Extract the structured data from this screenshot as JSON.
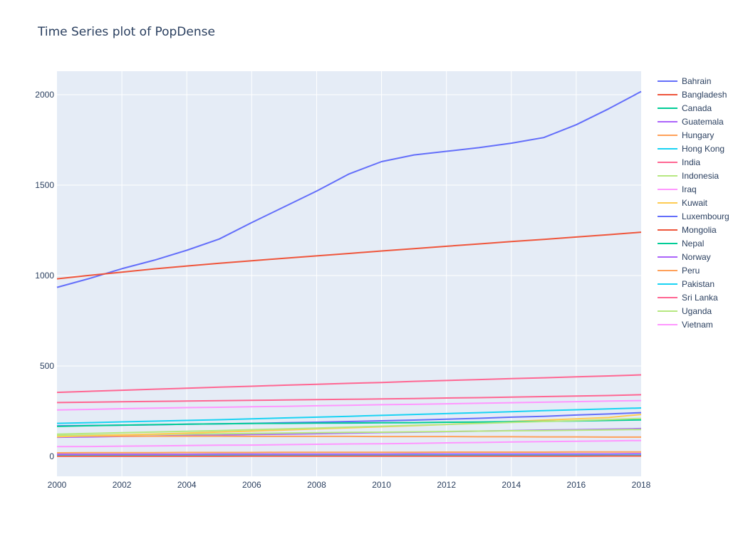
{
  "chart_data": {
    "type": "line",
    "title": "Time Series plot of PopDense",
    "xlabel": "",
    "ylabel": "",
    "xlim": [
      2000,
      2018
    ],
    "ylim": [
      -110,
      2130
    ],
    "x_ticks": [
      2000,
      2002,
      2004,
      2006,
      2008,
      2010,
      2012,
      2014,
      2016,
      2018
    ],
    "y_ticks": [
      0,
      500,
      1000,
      1500,
      2000
    ],
    "grid": true,
    "legend_position": "right",
    "plot_background": "#e5ecf6",
    "x": [
      2000,
      2001,
      2002,
      2003,
      2004,
      2005,
      2006,
      2007,
      2008,
      2009,
      2010,
      2011,
      2012,
      2013,
      2014,
      2015,
      2016,
      2017,
      2018
    ],
    "series": [
      {
        "name": "Bahrain",
        "color": "#636efa",
        "values": [
          935,
          984,
          1038,
          1085,
          1140,
          1202,
          1293,
          1380,
          1467,
          1562,
          1630,
          1667,
          1687,
          1707,
          1732,
          1763,
          1834,
          1922,
          2018
        ]
      },
      {
        "name": "Bangladesh",
        "color": "#EF553B",
        "values": [
          982,
          1001,
          1019,
          1037,
          1053,
          1068,
          1082,
          1096,
          1109,
          1122,
          1136,
          1149,
          1162,
          1175,
          1188,
          1200,
          1213,
          1226,
          1240
        ]
      },
      {
        "name": "Canada",
        "color": "#00cc96",
        "values": [
          3.4,
          3.4,
          3.5,
          3.5,
          3.5,
          3.6,
          3.6,
          3.6,
          3.7,
          3.7,
          3.8,
          3.8,
          3.8,
          3.9,
          3.9,
          4.0,
          4.0,
          4.1,
          4.1
        ]
      },
      {
        "name": "Guatemala",
        "color": "#ab63fa",
        "values": [
          106,
          108,
          111,
          113,
          116,
          118,
          121,
          123,
          126,
          129,
          132,
          134,
          137,
          140,
          143,
          146,
          148,
          151,
          154
        ]
      },
      {
        "name": "Hungary",
        "color": "#FFA15A",
        "values": [
          113,
          113,
          112,
          112,
          112,
          112,
          111,
          111,
          111,
          111,
          110,
          110,
          110,
          109,
          109,
          108,
          108,
          107,
          107
        ]
      },
      {
        "name": "Hong Kong",
        "color": "#19d3f3",
        "values": [
          6.5,
          6.5,
          6.6,
          6.6,
          6.6,
          6.6,
          6.7,
          6.7,
          6.8,
          6.8,
          6.9,
          6.9,
          7.0,
          7.0,
          7.1,
          7.2,
          7.2,
          7.3,
          7.4
        ]
      },
      {
        "name": "India",
        "color": "#FF6692",
        "values": [
          354,
          360,
          366,
          372,
          377,
          383,
          388,
          394,
          399,
          404,
          409,
          415,
          420,
          425,
          430,
          435,
          440,
          445,
          451
        ]
      },
      {
        "name": "Indonesia",
        "color": "#B6E880",
        "values": [
          116,
          118,
          120,
          122,
          124,
          125,
          127,
          129,
          131,
          133,
          134,
          136,
          138,
          140,
          142,
          143,
          145,
          147,
          149
        ]
      },
      {
        "name": "Iraq",
        "color": "#FF97FF",
        "values": [
          54,
          55,
          57,
          58,
          60,
          62,
          63,
          65,
          67,
          69,
          70,
          72,
          75,
          77,
          80,
          82,
          84,
          86,
          88
        ]
      },
      {
        "name": "Kuwait",
        "color": "#FECB52",
        "values": [
          109,
          114,
          119,
          124,
          129,
          135,
          140,
          146,
          152,
          158,
          164,
          170,
          177,
          185,
          193,
          201,
          208,
          215,
          232
        ]
      },
      {
        "name": "Luxembourg",
        "color": "#636efa",
        "values": [
          169,
          171,
          173,
          175,
          178,
          180,
          183,
          186,
          189,
          193,
          197,
          201,
          206,
          211,
          217,
          222,
          229,
          235,
          242
        ]
      },
      {
        "name": "Mongolia",
        "color": "#EF553B",
        "values": [
          1.6,
          1.6,
          1.6,
          1.6,
          1.6,
          1.6,
          1.7,
          1.7,
          1.7,
          1.7,
          1.7,
          1.8,
          1.8,
          1.8,
          1.9,
          1.9,
          1.9,
          2.0,
          2.0
        ]
      },
      {
        "name": "Nepal",
        "color": "#00cc96",
        "values": [
          166,
          170,
          173,
          176,
          178,
          180,
          182,
          183,
          184,
          185,
          186,
          187,
          189,
          190,
          192,
          194,
          196,
          199,
          202
        ]
      },
      {
        "name": "Norway",
        "color": "#ab63fa",
        "values": [
          12,
          12,
          12,
          12,
          12,
          13,
          13,
          13,
          13,
          13,
          13,
          14,
          14,
          14,
          14,
          14,
          14,
          14,
          15
        ]
      },
      {
        "name": "Peru",
        "color": "#FFA15A",
        "values": [
          20,
          21,
          21,
          21,
          22,
          22,
          22,
          23,
          23,
          23,
          23,
          23,
          24,
          24,
          24,
          24,
          25,
          25,
          25
        ]
      },
      {
        "name": "Pakistan",
        "color": "#19d3f3",
        "values": [
          183,
          187,
          191,
          195,
          199,
          203,
          208,
          213,
          217,
          222,
          227,
          232,
          237,
          242,
          247,
          253,
          258,
          263,
          268
        ]
      },
      {
        "name": "Sri Lanka",
        "color": "#FF6692",
        "values": [
          298,
          300,
          302,
          304,
          306,
          308,
          310,
          312,
          314,
          316,
          318,
          320,
          323,
          325,
          328,
          331,
          334,
          337,
          341
        ]
      },
      {
        "name": "Uganda",
        "color": "#B6E880",
        "values": [
          123,
          127,
          131,
          135,
          139,
          143,
          148,
          152,
          157,
          162,
          167,
          172,
          177,
          182,
          188,
          193,
          198,
          204,
          210
        ]
      },
      {
        "name": "Vietnam",
        "color": "#FF97FF",
        "values": [
          257,
          260,
          264,
          267,
          270,
          272,
          275,
          277,
          280,
          283,
          286,
          288,
          291,
          294,
          297,
          300,
          303,
          306,
          309
        ]
      }
    ]
  }
}
